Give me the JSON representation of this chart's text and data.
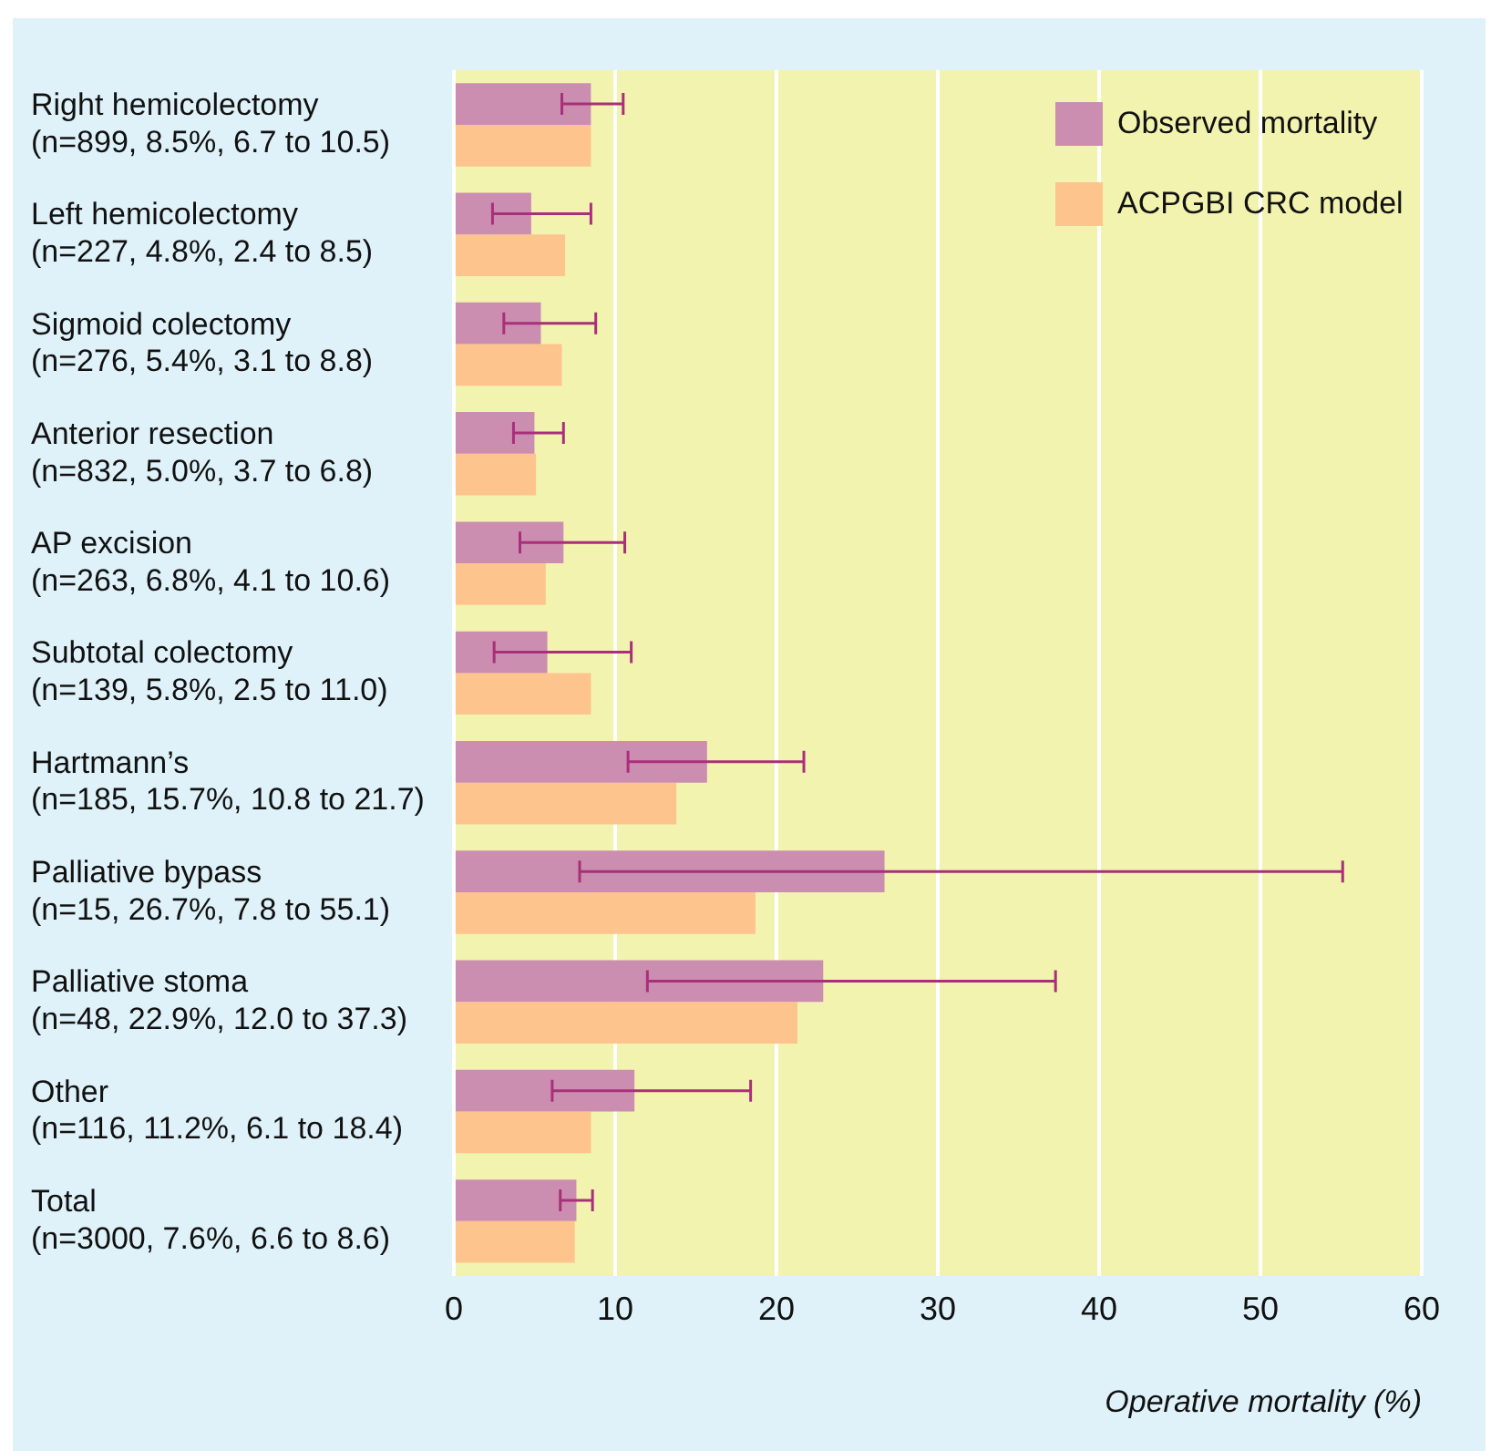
{
  "chart_data": {
    "type": "bar",
    "orientation": "horizontal",
    "xlabel": "Operative mortality (%)",
    "categories": [
      "Right hemicolectomy\n(n=899, 8.5%, 6.7 to 10.5)",
      "Left hemicolectomy\n(n=227, 4.8%, 2.4 to 8.5)",
      "Sigmoid colectomy\n(n=276, 5.4%, 3.1 to 8.8)",
      "Anterior resection\n(n=832, 5.0%, 3.7 to 6.8)",
      "AP excision\n(n=263, 6.8%, 4.1 to 10.6)",
      "Subtotal colectomy\n(n=139, 5.8%, 2.5 to 11.0)",
      "Hartmann’s\n(n=185, 15.7%, 10.8 to 21.7)",
      "Palliative bypass\n(n=15, 26.7%, 7.8 to 55.1)",
      "Palliative stoma\n(n=48, 22.9%, 12.0 to 37.3)",
      "Other\n(n=116, 11.2%, 6.1 to 18.4)",
      "Total\n(n=3000, 7.6%, 6.6 to 8.6)"
    ],
    "series": [
      {
        "name": "Observed mortality",
        "color": "#cc8eb0",
        "values": [
          8.5,
          4.8,
          5.4,
          5.0,
          6.8,
          5.8,
          15.7,
          26.7,
          22.9,
          11.2,
          7.6
        ],
        "errors": [
          [
            6.7,
            10.5
          ],
          [
            2.4,
            8.5
          ],
          [
            3.1,
            8.8
          ],
          [
            3.7,
            6.8
          ],
          [
            4.1,
            10.6
          ],
          [
            2.5,
            11.0
          ],
          [
            10.8,
            21.7
          ],
          [
            7.8,
            55.1
          ],
          [
            12.0,
            37.3
          ],
          [
            6.1,
            18.4
          ],
          [
            6.6,
            8.6
          ]
        ]
      },
      {
        "name": "ACPGBI CRC model",
        "color": "#fdc48e",
        "values": [
          8.5,
          6.9,
          6.7,
          5.1,
          5.7,
          8.5,
          13.8,
          18.7,
          21.3,
          8.5,
          7.5
        ]
      }
    ],
    "xlim": [
      0,
      60
    ],
    "xticks": [
      0,
      10,
      20,
      30,
      40,
      50,
      60
    ],
    "grid": "x",
    "legend": "top right"
  }
}
